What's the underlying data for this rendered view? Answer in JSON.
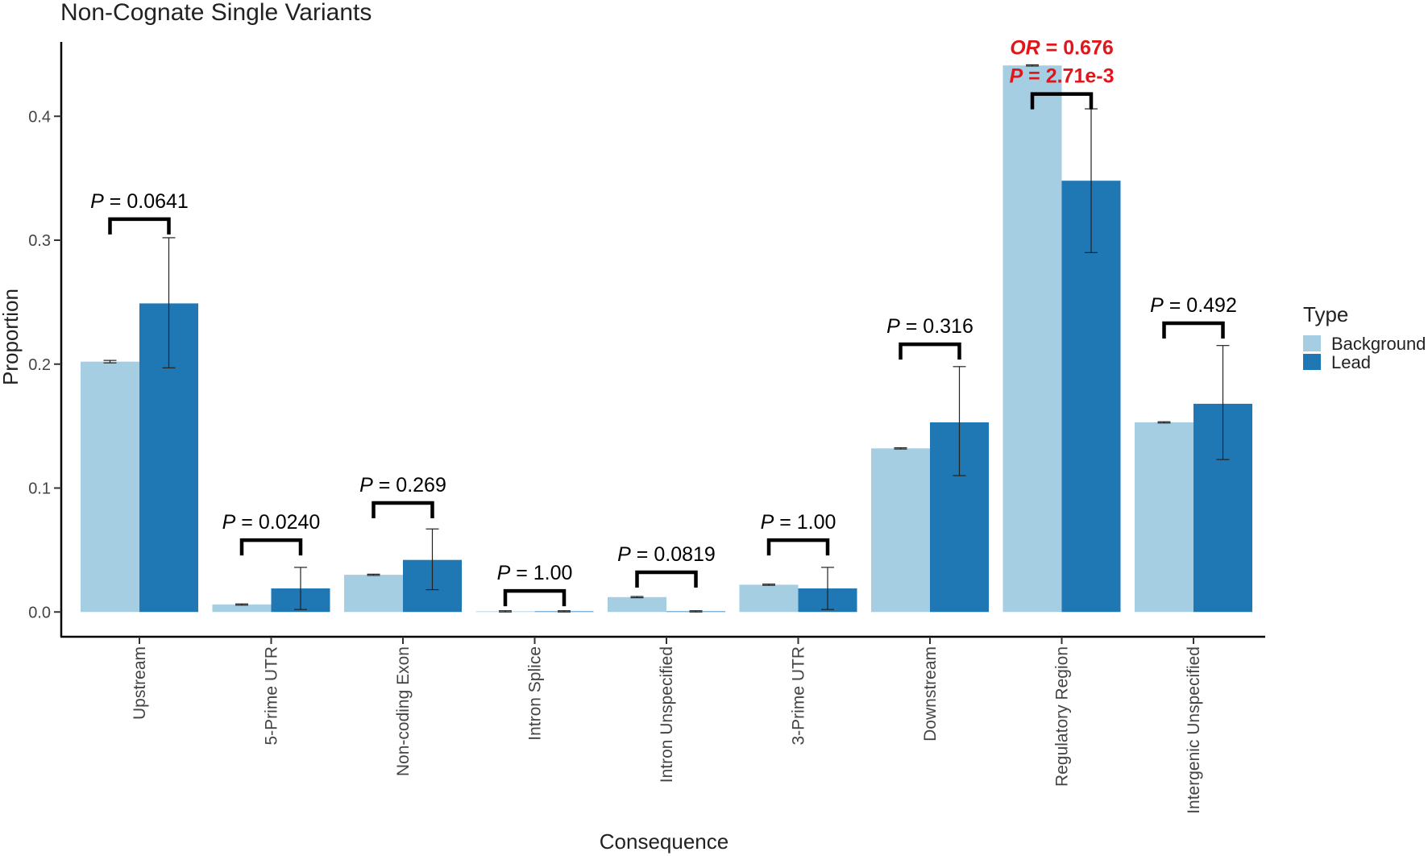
{
  "chart_data": {
    "type": "bar",
    "title": "Non-Cognate Single Variants",
    "xlabel": "Consequence",
    "ylabel": "Proportion",
    "ylim": [
      -0.02,
      0.46
    ],
    "yticks": [
      0.0,
      0.1,
      0.2,
      0.3,
      0.4
    ],
    "ytick_labels": [
      "0.0",
      "0.1",
      "0.2",
      "0.3",
      "0.4"
    ],
    "grid": false,
    "legend": {
      "title": "Type",
      "position": "right"
    },
    "categories": [
      "Upstream",
      "5-Prime UTR",
      "Non-coding Exon",
      "Intron Splice",
      "Intron Unspecified",
      "3-Prime UTR",
      "Downstream",
      "Regulatory Region",
      "Intergenic Unspecified"
    ],
    "series": [
      {
        "name": "Background",
        "color": "#a6cee3",
        "values": [
          0.202,
          0.006,
          0.03,
          0.0005,
          0.012,
          0.022,
          0.132,
          0.441,
          0.153
        ],
        "err_low": [
          0.201,
          0.0055,
          0.0295,
          0.0,
          0.0115,
          0.0215,
          0.1315,
          0.4405,
          0.1525
        ],
        "err_high": [
          0.203,
          0.0065,
          0.0305,
          0.001,
          0.0125,
          0.0225,
          0.1325,
          0.4415,
          0.1535
        ]
      },
      {
        "name": "Lead",
        "color": "#1f78b4",
        "values": [
          0.249,
          0.019,
          0.042,
          0.0,
          0.0,
          0.019,
          0.153,
          0.348,
          0.168
        ],
        "err_low": [
          0.197,
          0.002,
          0.018,
          0.0,
          0.0,
          0.002,
          0.11,
          0.29,
          0.123
        ],
        "err_high": [
          0.302,
          0.036,
          0.067,
          0.001,
          0.001,
          0.036,
          0.198,
          0.406,
          0.215
        ]
      }
    ],
    "annotations": [
      {
        "category": "Upstream",
        "prefix": "P",
        "text": " = 0.0641",
        "bracket_y": 0.317,
        "highlight": false
      },
      {
        "category": "5-Prime UTR",
        "prefix": "P",
        "text": " = 0.0240",
        "bracket_y": 0.058,
        "highlight": false
      },
      {
        "category": "Non-coding Exon",
        "prefix": "P",
        "text": " = 0.269",
        "bracket_y": 0.088,
        "highlight": false
      },
      {
        "category": "Intron Splice",
        "prefix": "P",
        "text": " = 1.00",
        "bracket_y": 0.017,
        "highlight": false
      },
      {
        "category": "Intron Unspecified",
        "prefix": "P",
        "text": " = 0.0819",
        "bracket_y": 0.032,
        "highlight": false
      },
      {
        "category": "3-Prime UTR",
        "prefix": "P",
        "text": " = 1.00",
        "bracket_y": 0.058,
        "highlight": false
      },
      {
        "category": "Downstream",
        "prefix": "P",
        "text": " = 0.316",
        "bracket_y": 0.216,
        "highlight": false
      },
      {
        "category": "Regulatory Region",
        "prefix": "P",
        "text": " = 2.71e-3",
        "prefix2": "OR",
        "text2": " = 0.676",
        "bracket_y": 0.418,
        "highlight": true
      },
      {
        "category": "Intergenic Unspecified",
        "prefix": "P",
        "text": " = 0.492",
        "bracket_y": 0.233,
        "highlight": false
      }
    ]
  }
}
